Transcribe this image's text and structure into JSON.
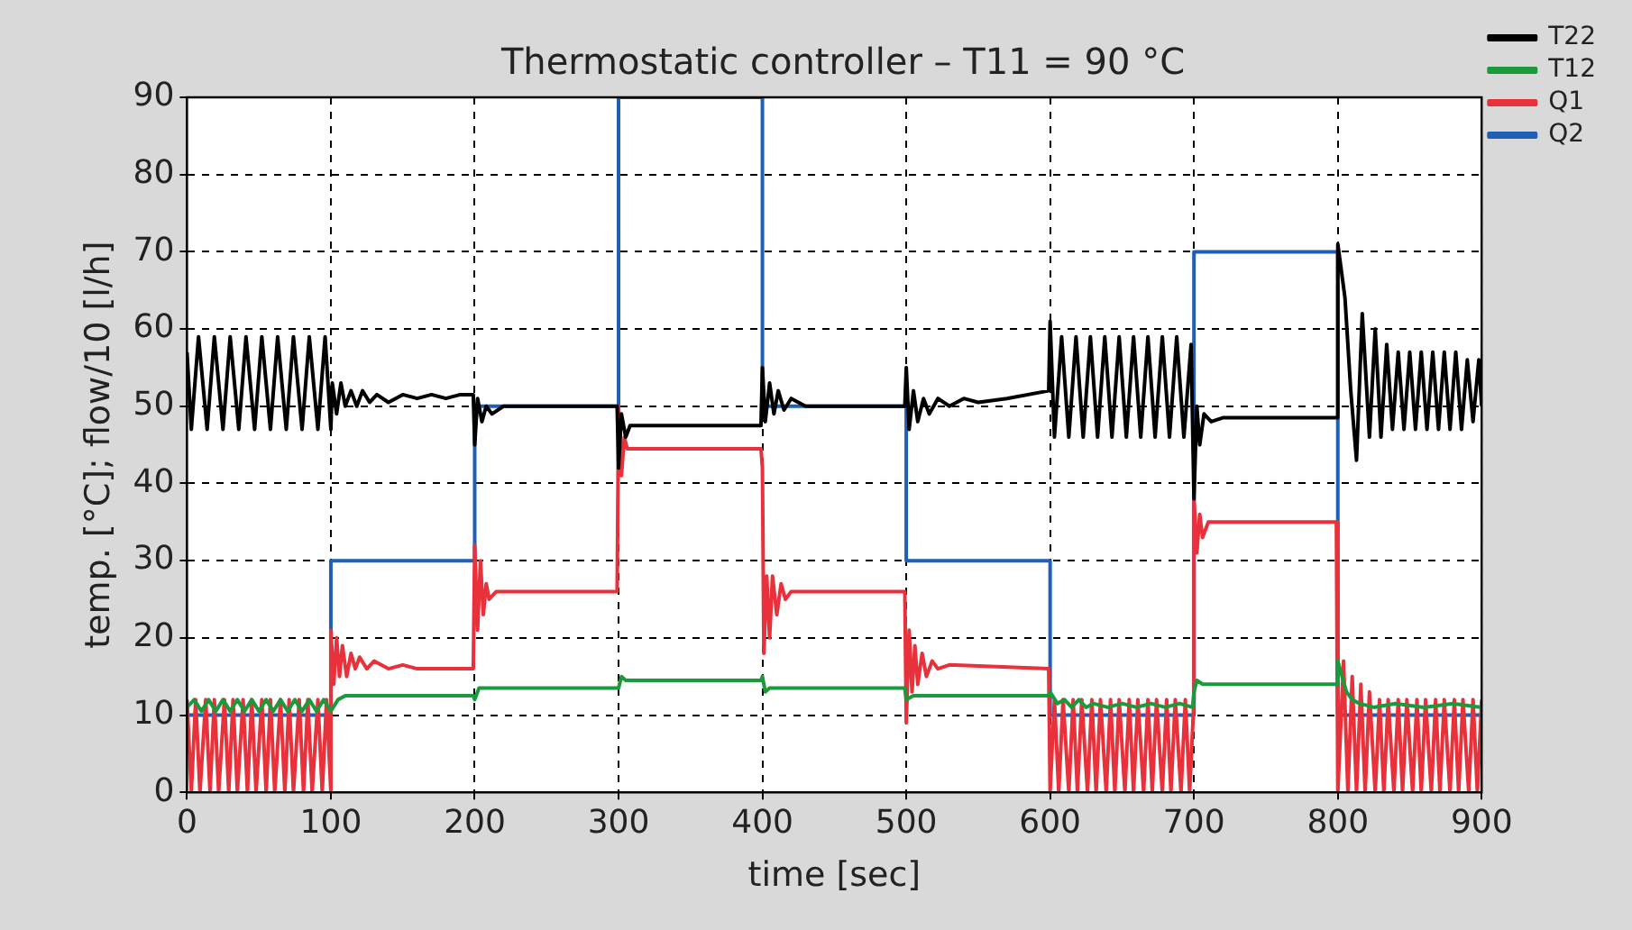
{
  "chart_data": {
    "type": "line",
    "title": "Thermostatic controller – T11 = 90 °C",
    "xlabel": "time [sec]",
    "ylabel": "temp. [°C]; flow/10 [l/h]",
    "xlim": [
      0,
      900
    ],
    "xticks": [
      0,
      100,
      200,
      300,
      400,
      500,
      600,
      700,
      800,
      900
    ],
    "ylim": [
      0,
      90
    ],
    "yticks": [
      0,
      10,
      20,
      30,
      40,
      50,
      60,
      70,
      80,
      90
    ],
    "grid": true,
    "legend": "top right",
    "marker": "none",
    "line_style": "solid",
    "series": [
      {
        "name": "T22",
        "color": "#000000",
        "x": [
          0,
          3,
          8,
          14,
          19,
          25,
          30,
          36,
          41,
          47,
          52,
          58,
          63,
          69,
          74,
          80,
          85,
          91,
          96,
          100,
          101,
          104,
          107,
          110,
          114,
          118,
          122,
          127,
          132,
          140,
          150,
          160,
          170,
          180,
          190,
          199,
          200,
          202,
          205,
          208,
          212,
          220,
          250,
          299,
          300,
          302,
          305,
          308,
          320,
          399,
          400,
          402,
          405,
          408,
          411,
          415,
          420,
          430,
          450,
          499,
          500,
          502,
          505,
          508,
          512,
          516,
          522,
          530,
          540,
          550,
          570,
          599,
          600,
          603,
          608,
          613,
          618,
          623,
          628,
          633,
          638,
          643,
          648,
          653,
          658,
          663,
          668,
          673,
          678,
          683,
          688,
          693,
          698,
          700,
          702,
          704,
          707,
          712,
          720,
          799,
          800,
          805,
          809,
          813,
          817,
          822,
          826,
          830,
          834,
          838,
          842,
          846,
          850,
          854,
          858,
          862,
          866,
          870,
          874,
          878,
          882,
          886,
          890,
          894,
          898,
          900
        ],
        "values": [
          57,
          47,
          59,
          47,
          59,
          47,
          59,
          47,
          59,
          47,
          59,
          47,
          59,
          47,
          59,
          47,
          59,
          47,
          59,
          47,
          53,
          49,
          53,
          50,
          52,
          50,
          52,
          50.5,
          51.5,
          50.5,
          51.5,
          51,
          51.5,
          51,
          51.5,
          51.5,
          45,
          51,
          48,
          50,
          49,
          50,
          50,
          50,
          42,
          49,
          46,
          47.5,
          47.5,
          47.5,
          55,
          48,
          53,
          49,
          52,
          49.5,
          51,
          50,
          50,
          50,
          55,
          47,
          52,
          48,
          51,
          49,
          51,
          50,
          51,
          50.5,
          51,
          52,
          61,
          46,
          59,
          46,
          59,
          46,
          59,
          46,
          59,
          46,
          59,
          46,
          59,
          46,
          59,
          46,
          59,
          46,
          59,
          46,
          58,
          38,
          50,
          45,
          49,
          48,
          48.5,
          48.5,
          71,
          64,
          52,
          43,
          62,
          46,
          60,
          46,
          58,
          47,
          57,
          47,
          57,
          47,
          57,
          47,
          57,
          47,
          57,
          47,
          57,
          47,
          56,
          48,
          56,
          50
        ]
      },
      {
        "name": "T12",
        "color": "#1a9a3a",
        "x": [
          0,
          5,
          10,
          15,
          20,
          25,
          30,
          35,
          40,
          45,
          50,
          55,
          60,
          65,
          70,
          75,
          80,
          85,
          90,
          95,
          100,
          105,
          110,
          130,
          150,
          180,
          199,
          200,
          203,
          210,
          299,
          300,
          302,
          305,
          399,
          400,
          402,
          405,
          499,
          500,
          505,
          599,
          600,
          605,
          610,
          615,
          620,
          625,
          630,
          640,
          650,
          660,
          670,
          680,
          690,
          699,
          700,
          702,
          706,
          799,
          800,
          803,
          806,
          810,
          815,
          825,
          840,
          860,
          880,
          900
        ],
        "values": [
          11,
          12,
          10.5,
          12,
          10.5,
          12,
          10.5,
          12,
          10.5,
          12,
          10.5,
          12,
          10.5,
          12,
          10.5,
          12,
          10.5,
          12,
          10.5,
          12,
          10.5,
          12,
          12.5,
          12.5,
          12.5,
          12.5,
          12.5,
          12,
          13.5,
          13.5,
          13.5,
          13.5,
          15,
          14.5,
          14.5,
          15,
          13,
          13.5,
          13.5,
          12,
          12.5,
          12.5,
          13,
          11.5,
          12,
          11,
          12,
          11,
          11.5,
          11,
          11.5,
          11,
          11.5,
          11,
          11.5,
          11,
          13,
          14.5,
          14,
          14,
          17,
          15,
          13,
          12,
          11.5,
          11,
          11.5,
          11,
          11.5,
          11
        ]
      },
      {
        "name": "Q1",
        "color": "#e8313a",
        "x": [
          0,
          3,
          6,
          9,
          13,
          16,
          19,
          22,
          26,
          29,
          32,
          35,
          39,
          42,
          45,
          48,
          52,
          55,
          58,
          61,
          65,
          68,
          71,
          74,
          78,
          81,
          84,
          87,
          91,
          94,
          97,
          100,
          100,
          102,
          104,
          106,
          108,
          111,
          114,
          117,
          120,
          125,
          130,
          140,
          150,
          160,
          170,
          180,
          199,
          200,
          202,
          204,
          206,
          208,
          210,
          215,
          299,
          300,
          302,
          304,
          306,
          399,
          400,
          401,
          403,
          405,
          407,
          410,
          413,
          416,
          420,
          430,
          499,
          500,
          502,
          504,
          506,
          508,
          511,
          514,
          518,
          522,
          530,
          599,
          600,
          603,
          606,
          609,
          613,
          616,
          619,
          622,
          626,
          629,
          632,
          635,
          639,
          642,
          645,
          648,
          652,
          655,
          658,
          661,
          665,
          668,
          671,
          674,
          678,
          681,
          684,
          687,
          691,
          694,
          697,
          700,
          700,
          702,
          704,
          706,
          710,
          799,
          800,
          804,
          807,
          810,
          813,
          816,
          819,
          822,
          826,
          829,
          832,
          835,
          839,
          842,
          845,
          848,
          852,
          855,
          858,
          861,
          865,
          868,
          871,
          874,
          878,
          881,
          884,
          887,
          891,
          894,
          897,
          900
        ],
        "values": [
          12,
          0,
          12,
          0,
          12,
          0,
          12,
          0,
          12,
          0,
          12,
          0,
          12,
          0,
          12,
          0,
          12,
          0,
          12,
          0,
          12,
          0,
          12,
          0,
          12,
          0,
          12,
          0,
          12,
          0,
          12,
          0,
          21,
          14,
          20,
          15,
          19,
          15,
          18,
          16,
          17.5,
          16,
          17,
          16,
          16.5,
          16,
          16,
          16,
          16,
          32,
          21,
          30,
          23,
          27,
          25,
          26,
          26,
          50,
          41,
          46,
          44.5,
          44.5,
          42,
          18,
          28,
          20,
          28,
          23,
          27,
          25,
          26,
          26,
          26,
          9,
          21,
          13,
          19,
          14,
          18,
          15,
          17,
          16,
          16.5,
          16,
          0,
          12,
          0,
          12,
          0,
          12,
          0,
          12,
          0,
          12,
          0,
          12,
          0,
          12,
          0,
          12,
          0,
          12,
          0,
          12,
          0,
          12,
          0,
          12,
          0,
          12,
          0,
          12,
          0,
          12,
          0,
          12,
          38,
          31,
          36,
          33,
          35,
          35,
          0,
          17,
          0,
          15,
          0,
          14,
          0,
          13,
          0,
          12,
          0,
          12,
          0,
          12,
          0,
          12,
          0,
          12,
          0,
          12,
          0,
          12,
          0,
          12,
          0,
          12,
          0,
          12,
          0,
          12,
          0,
          12
        ]
      },
      {
        "name": "Q2",
        "color": "#1f5fb4",
        "x": [
          0,
          100,
          100,
          200,
          200,
          300,
          300,
          400,
          400,
          500,
          500,
          600,
          600,
          700,
          700,
          800,
          800,
          900
        ],
        "values": [
          10,
          10,
          30,
          30,
          50,
          50,
          90,
          90,
          50,
          50,
          30,
          30,
          10,
          10,
          70,
          70,
          10,
          10
        ]
      }
    ]
  }
}
